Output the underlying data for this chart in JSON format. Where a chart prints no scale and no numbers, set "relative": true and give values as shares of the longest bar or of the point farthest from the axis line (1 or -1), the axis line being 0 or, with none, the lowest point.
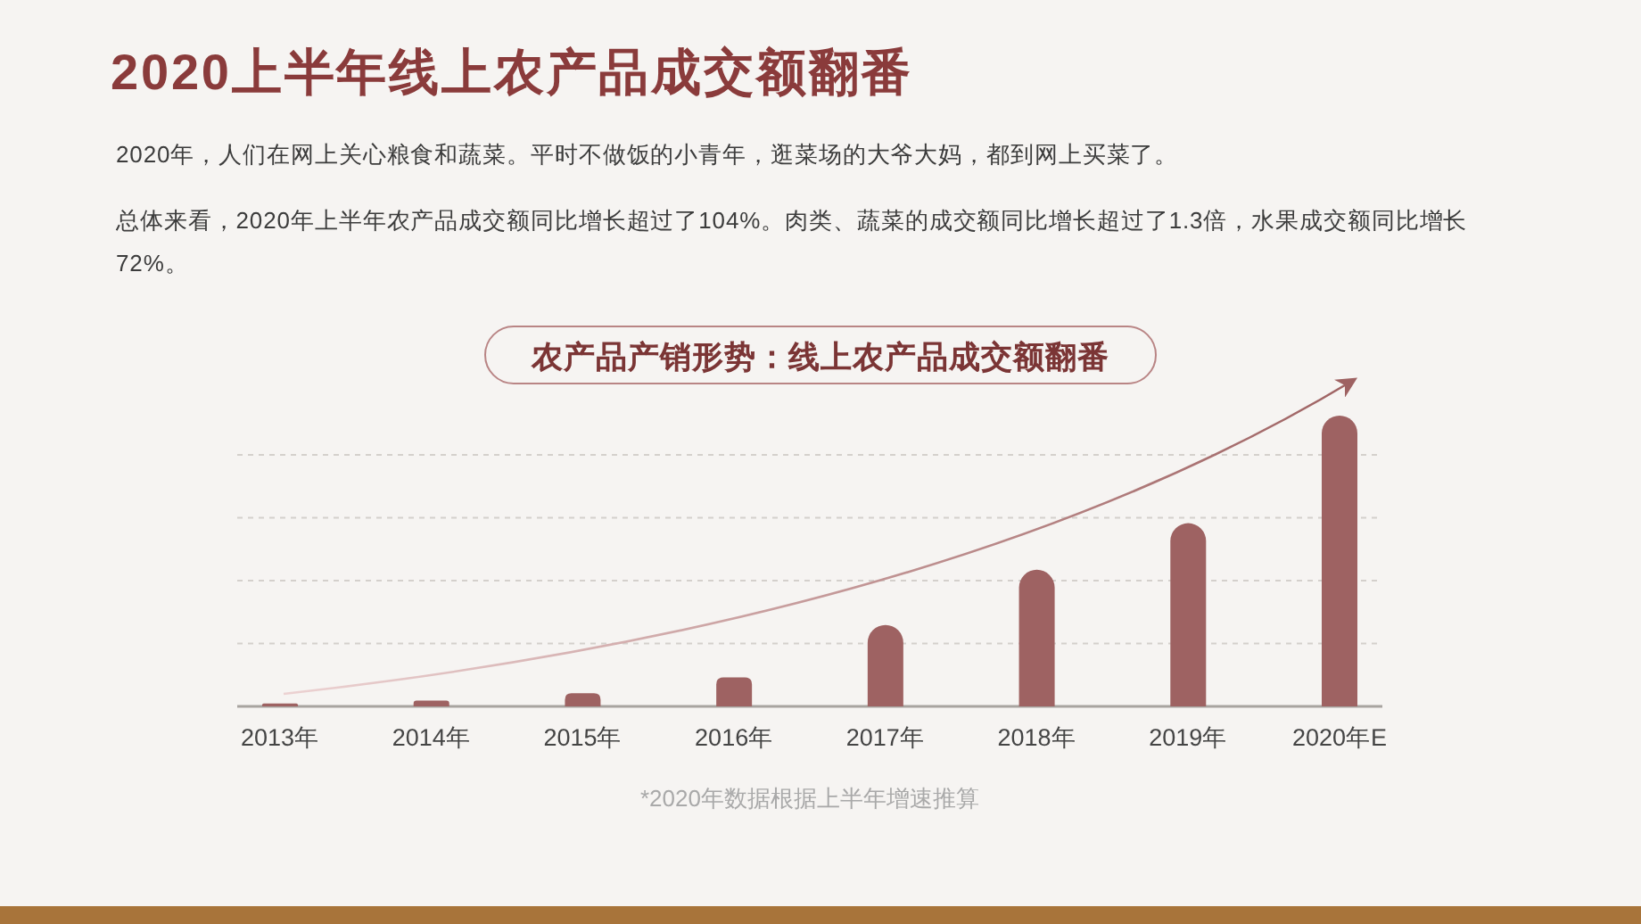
{
  "chart_data": {
    "type": "bar",
    "title": "2020上半年线上农产品成交额翻番",
    "subtitle": "农产品产销形势：线上农产品成交额翻番",
    "categories": [
      "2013年",
      "2014年",
      "2015年",
      "2016年",
      "2017年",
      "2018年",
      "2019年",
      "2020年E"
    ],
    "values": [
      0.01,
      0.02,
      0.045,
      0.1,
      0.28,
      0.47,
      0.63,
      1
    ],
    "color": "#9e6262",
    "relative": true,
    "grid": "y",
    "annotations": [
      "2020年，人们在网上关心粮食和蔬菜。平时不做饭的小青年，逛菜场的大爷大妈，都到网上买菜了。",
      "总体来看，2020年上半年农产品成交额同比增长超过了104%。肉类、蔬菜的成交额同比增长超过了1.3倍，水果成交额同比增长72%。",
      "*2020年数据根据上半年增速推算"
    ]
  }
}
